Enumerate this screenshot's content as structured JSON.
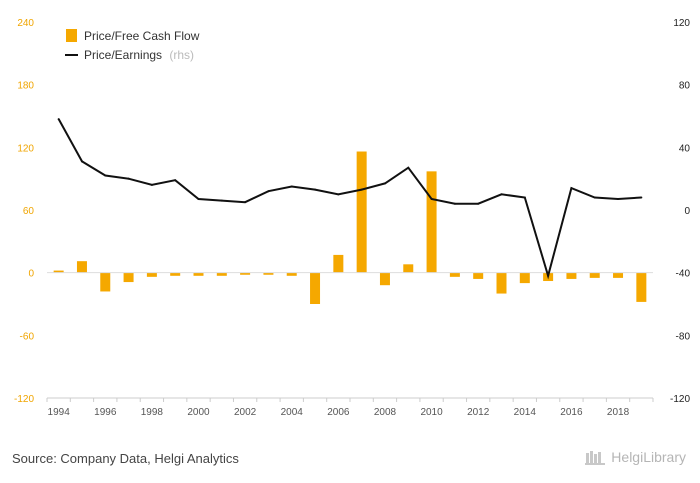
{
  "chart_data": {
    "type": "bar",
    "x": [
      1994,
      1995,
      1996,
      1997,
      1998,
      1999,
      2000,
      2001,
      2002,
      2003,
      2004,
      2005,
      2006,
      2007,
      2008,
      2009,
      2010,
      2011,
      2012,
      2013,
      2014,
      2015,
      2016,
      2017,
      2018,
      2019
    ],
    "x_tick_labels": [
      "1994",
      "1996",
      "1998",
      "2000",
      "2002",
      "2004",
      "2006",
      "2008",
      "2010",
      "2012",
      "2014",
      "2016",
      "2018"
    ],
    "series": [
      {
        "name": "Price/Free Cash Flow",
        "type": "bar",
        "axis": "left",
        "color": "#f5a800",
        "values": [
          2,
          11,
          -18,
          -9,
          -4,
          -3,
          -3,
          -3,
          -2,
          -2,
          -3,
          -30,
          17,
          116,
          -12,
          8,
          97,
          -4,
          -6,
          -20,
          -10,
          -8,
          -6,
          -5,
          -5,
          -28
        ]
      },
      {
        "name": "Price/Earnings",
        "note": "(rhs)",
        "type": "line",
        "axis": "right",
        "color": "#111111",
        "values": [
          58,
          31,
          22,
          20,
          16,
          19,
          7,
          6,
          5,
          12,
          15,
          13,
          10,
          13,
          17,
          27,
          7,
          4,
          4,
          10,
          8,
          -42,
          14,
          8,
          7,
          8
        ]
      }
    ],
    "left_axis": {
      "ylim": [
        -120,
        240
      ],
      "ticks": [
        "240",
        "180",
        "120",
        "60",
        "0",
        "-60",
        "-120"
      ],
      "color": "#f0a500"
    },
    "right_axis": {
      "ylim": [
        -120,
        120
      ],
      "ticks": [
        "120",
        "80",
        "40",
        "0",
        "-40",
        "-80",
        "-120"
      ],
      "color": "#222222"
    },
    "legend_position": "top-left",
    "grid": false
  },
  "footer": {
    "source": "Source: Company Data, Helgi Analytics",
    "brand": "HelgiLibrary"
  }
}
